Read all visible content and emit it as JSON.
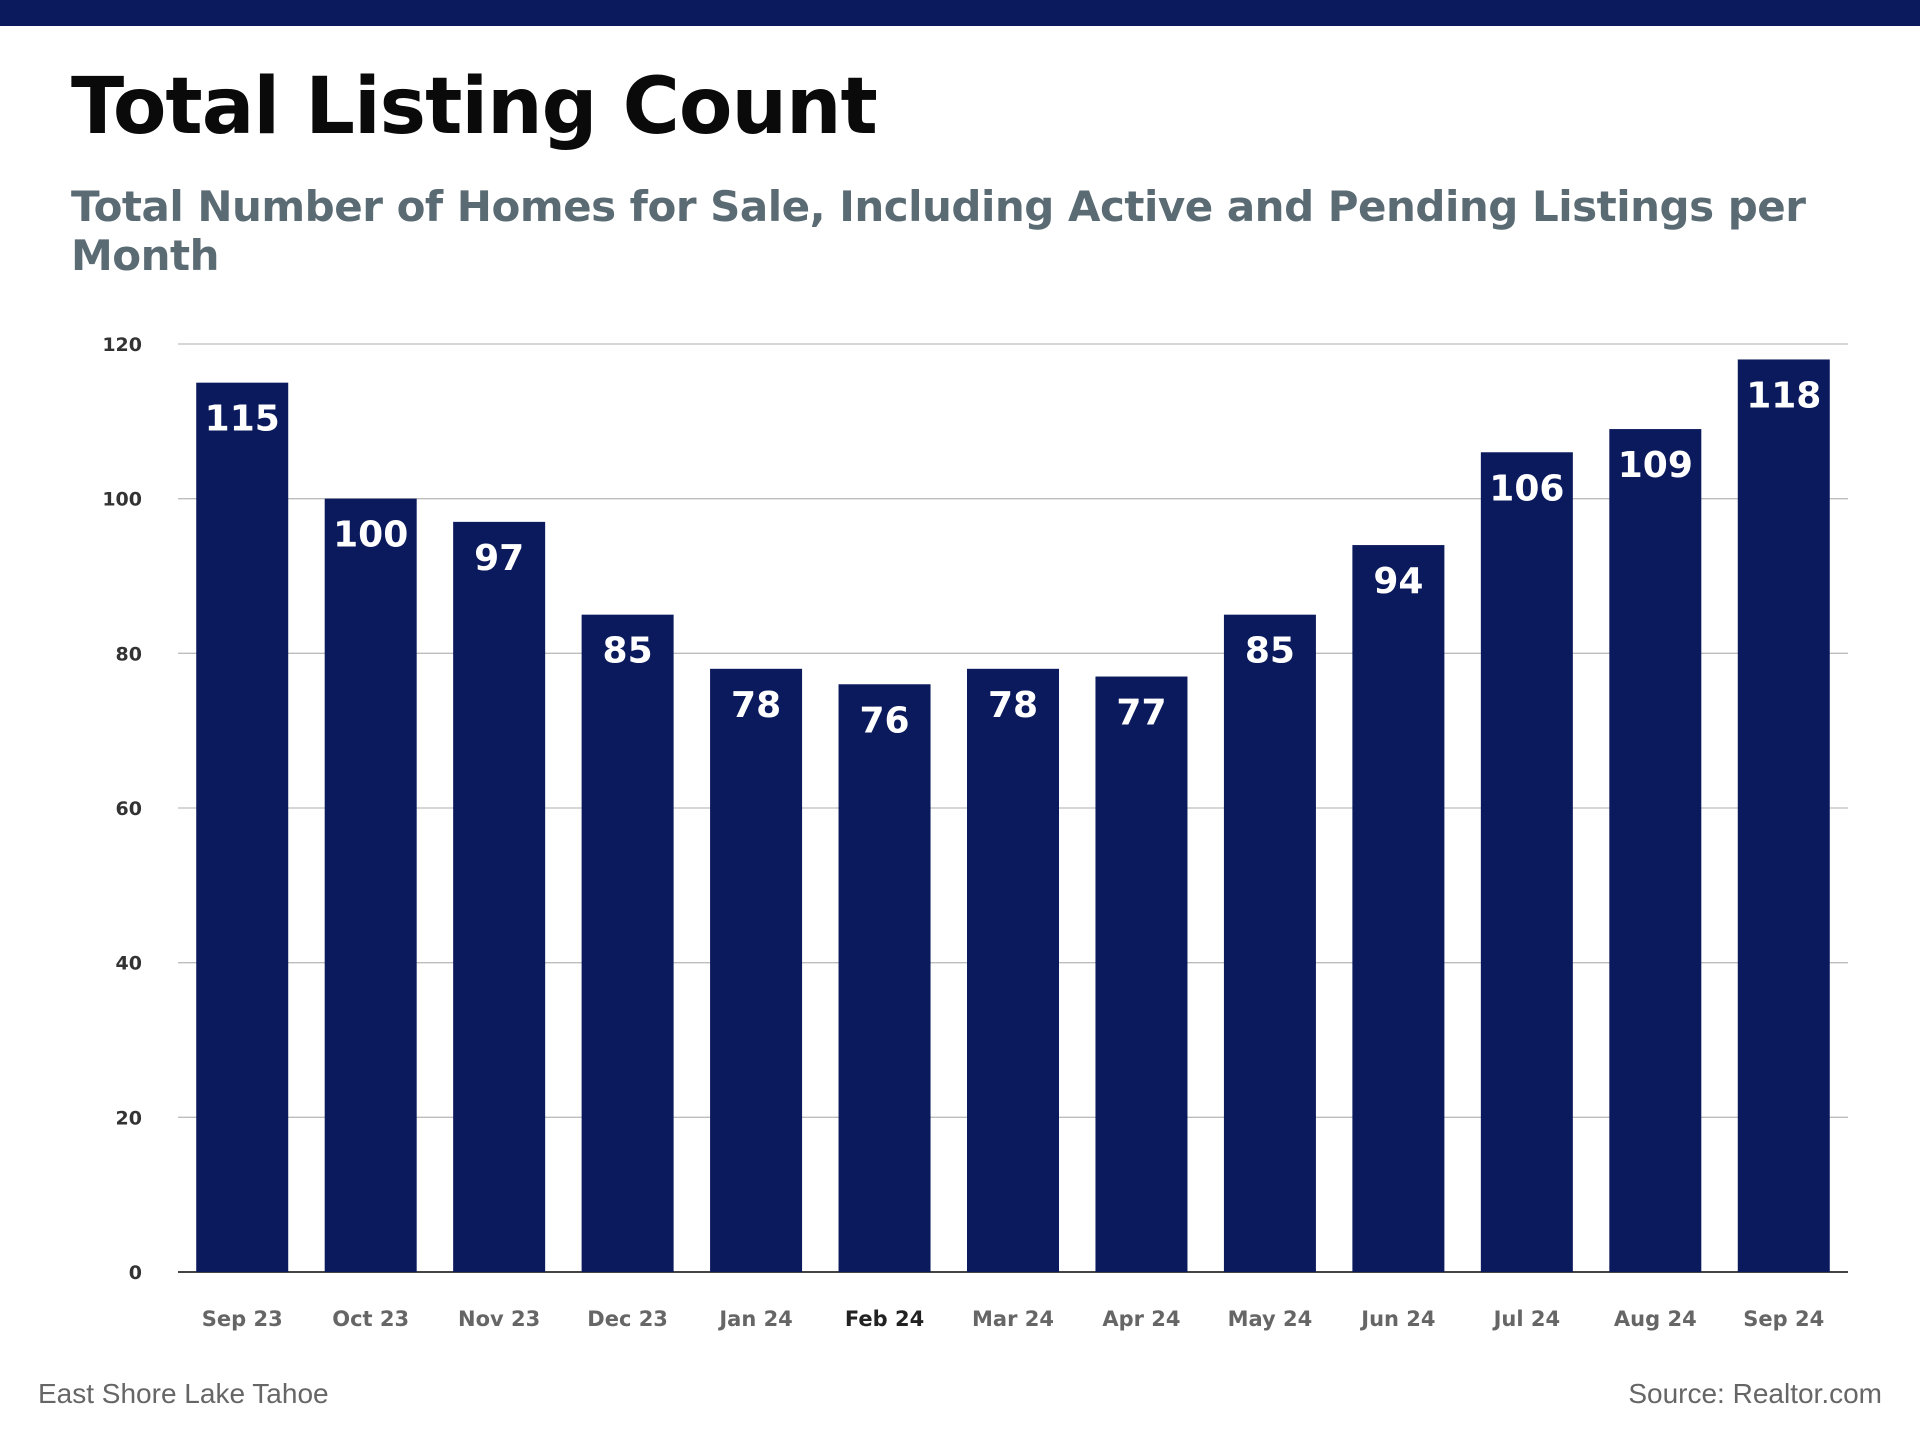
{
  "header": {
    "title": "Total Listing Count",
    "subtitle": "Total Number of Homes for Sale, Including Active and Pending Listings per Month"
  },
  "footer": {
    "left": "East Shore Lake Tahoe",
    "right": "Source: Realtor.com"
  },
  "colors": {
    "bar": "#0b1a5c",
    "top_bar": "#0b1a5c",
    "grid": "#bdbdbd",
    "axis_text": "#333333",
    "data_label": "#ffffff"
  },
  "chart_data": {
    "type": "bar",
    "title": "Total Listing Count",
    "subtitle": "Total Number of Homes for Sale, Including Active and Pending Listings per Month",
    "categories": [
      "Sep 23",
      "Oct 23",
      "Nov 23",
      "Dec 23",
      "Jan 24",
      "Feb 24",
      "Mar 24",
      "Apr 24",
      "May 24",
      "Jun 24",
      "Jul 24",
      "Aug 24",
      "Sep 24"
    ],
    "values": [
      115,
      100,
      97,
      85,
      78,
      76,
      78,
      77,
      85,
      94,
      106,
      109,
      118
    ],
    "yticks": [
      0,
      20,
      40,
      60,
      80,
      100,
      120
    ],
    "ylim": [
      0,
      120
    ],
    "xlabel": "",
    "ylabel": "",
    "grid": true,
    "legend": "none",
    "data_labels": true
  }
}
